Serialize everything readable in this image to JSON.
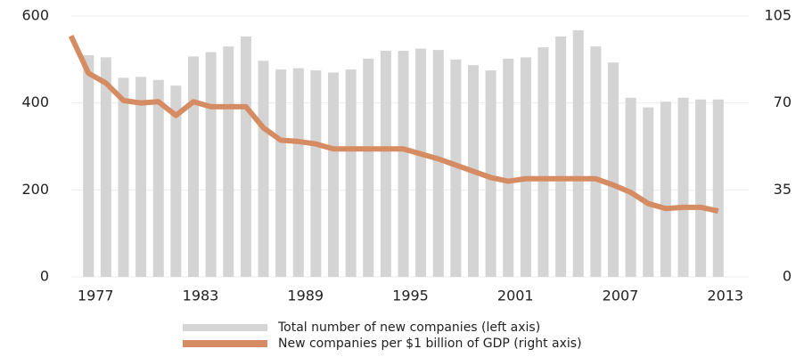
{
  "chart_data": {
    "type": "combo",
    "x": [
      1976,
      1977,
      1978,
      1979,
      1980,
      1981,
      1982,
      1983,
      1984,
      1985,
      1986,
      1987,
      1988,
      1989,
      1990,
      1991,
      1992,
      1993,
      1994,
      1995,
      1996,
      1997,
      1998,
      1999,
      2000,
      2001,
      2002,
      2003,
      2004,
      2005,
      2006,
      2007,
      2008,
      2009,
      2010,
      2011,
      2012,
      2013
    ],
    "series": [
      {
        "name": "Total number of new companies (left axis)",
        "type": "bar",
        "color": "#d4d4d4",
        "values": [
          null,
          510,
          505,
          458,
          460,
          453,
          440,
          507,
          517,
          530,
          553,
          497,
          477,
          480,
          475,
          470,
          477,
          502,
          520,
          520,
          525,
          522,
          500,
          487,
          475,
          502,
          505,
          528,
          553,
          567,
          530,
          493,
          412,
          390,
          403,
          412,
          408,
          408
        ]
      },
      {
        "name": "New companies per $1 billion of GDP (right axis)",
        "type": "line",
        "axis": "y2",
        "color": "#d68c62",
        "values": [
          97,
          82,
          78,
          71,
          70,
          70.5,
          65,
          70.5,
          68.5,
          68.5,
          68.5,
          60,
          55,
          54.5,
          53.5,
          51.5,
          51.5,
          51.5,
          51.5,
          51.5,
          49.5,
          47.5,
          45,
          42.5,
          40,
          38.5,
          39.5,
          39.5,
          39.5,
          39.5,
          39.5,
          37,
          34,
          29.5,
          27.5,
          28,
          28,
          26.5
        ]
      }
    ],
    "xlim": [
      1975,
      2015
    ],
    "xticks": [
      1977,
      1983,
      1989,
      1995,
      2001,
      2007,
      2013
    ],
    "ylim": [
      0,
      600
    ],
    "yticks": [
      0,
      200,
      400,
      600
    ],
    "y2lim": [
      0,
      105
    ],
    "y2ticks": [
      0,
      35,
      70,
      105
    ],
    "grid": true
  }
}
